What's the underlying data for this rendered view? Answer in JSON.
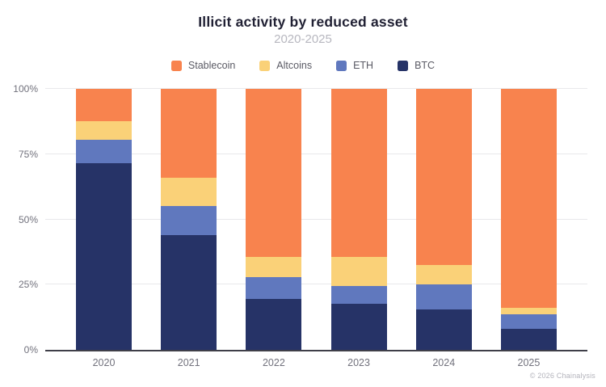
{
  "header": {
    "title": "Illicit activity by reduced asset",
    "subtitle": "2020-2025"
  },
  "footer": {
    "credit": "© 2026 Chainalysis"
  },
  "legend": [
    {
      "label": "Stablecoin",
      "color": "#F8834E"
    },
    {
      "label": "Altcoins",
      "color": "#FAD178"
    },
    {
      "label": "ETH",
      "color": "#6078BE"
    },
    {
      "label": "BTC",
      "color": "#263367"
    }
  ],
  "colors": {
    "stablecoin": "#F8834E",
    "altcoins": "#FAD178",
    "eth": "#6078BE",
    "btc": "#263367",
    "title": "#212134",
    "subtitle": "#b7b7bf",
    "tick_label": "#71717c",
    "gridline": "#e8e8eb",
    "axis_line": "#3f3f49"
  },
  "chart_data": {
    "type": "bar",
    "stacked": true,
    "title": "Illicit activity by reduced asset",
    "subtitle": "2020-2025",
    "xlabel": "",
    "ylabel": "",
    "ylim": [
      0,
      100
    ],
    "y_ticks": [
      "0%",
      "25%",
      "50%",
      "75%",
      "100%"
    ],
    "y_tick_values": [
      0,
      25,
      50,
      75,
      100
    ],
    "grid": "horizontal",
    "legend_position": "top",
    "categories": [
      "2020",
      "2021",
      "2022",
      "2023",
      "2024",
      "2025"
    ],
    "series": [
      {
        "name": "Stablecoin",
        "color": "#F8834E",
        "values": [
          12.5,
          34.0,
          64.5,
          64.5,
          67.5,
          84.0
        ]
      },
      {
        "name": "Altcoins",
        "color": "#FAD178",
        "values": [
          7.0,
          11.0,
          7.5,
          11.0,
          7.5,
          2.5
        ]
      },
      {
        "name": "ETH",
        "color": "#6078BE",
        "values": [
          9.0,
          11.0,
          8.5,
          7.0,
          9.5,
          5.5
        ]
      },
      {
        "name": "BTC",
        "color": "#263367",
        "values": [
          71.5,
          44.0,
          19.5,
          17.5,
          15.5,
          8.0
        ]
      }
    ]
  }
}
